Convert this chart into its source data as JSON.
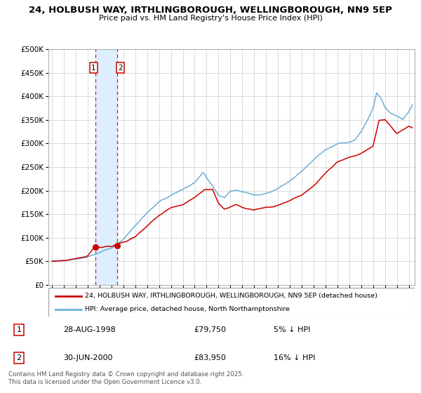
{
  "title_line1": "24, HOLBUSH WAY, IRTHLINGBOROUGH, WELLINGBOROUGH, NN9 5EP",
  "title_line2": "Price paid vs. HM Land Registry's House Price Index (HPI)",
  "ylim": [
    0,
    500000
  ],
  "yticks": [
    0,
    50000,
    100000,
    150000,
    200000,
    250000,
    300000,
    350000,
    400000,
    450000,
    500000
  ],
  "ytick_labels": [
    "£0",
    "£50K",
    "£100K",
    "£150K",
    "£200K",
    "£250K",
    "£300K",
    "£350K",
    "£400K",
    "£450K",
    "£500K"
  ],
  "xlim_start": 1994.7,
  "xlim_end": 2025.5,
  "xticks": [
    1995,
    1996,
    1997,
    1998,
    1999,
    2000,
    2001,
    2002,
    2003,
    2004,
    2005,
    2006,
    2007,
    2008,
    2009,
    2010,
    2011,
    2012,
    2013,
    2014,
    2015,
    2016,
    2017,
    2018,
    2019,
    2020,
    2021,
    2022,
    2023,
    2024,
    2025
  ],
  "hpi_color": "#6dafd6",
  "price_color": "#cc0000",
  "marker_color": "#cc0000",
  "vline_color": "#cc0000",
  "shade_color": "#ddeeff",
  "transaction1_x": 1998.66,
  "transaction1_y": 79750,
  "transaction2_x": 2000.5,
  "transaction2_y": 83950,
  "legend_label_price": "24, HOLBUSH WAY, IRTHLINGBOROUGH, WELLINGBOROUGH, NN9 5EP (detached house)",
  "legend_label_hpi": "HPI: Average price, detached house, North Northamptonshire",
  "table_row1": [
    "1",
    "28-AUG-1998",
    "£79,750",
    "5% ↓ HPI"
  ],
  "table_row2": [
    "2",
    "30-JUN-2000",
    "£83,950",
    "16% ↓ HPI"
  ],
  "footer": "Contains HM Land Registry data © Crown copyright and database right 2025.\nThis data is licensed under the Open Government Licence v3.0.",
  "background_color": "#ffffff",
  "grid_color": "#cccccc"
}
